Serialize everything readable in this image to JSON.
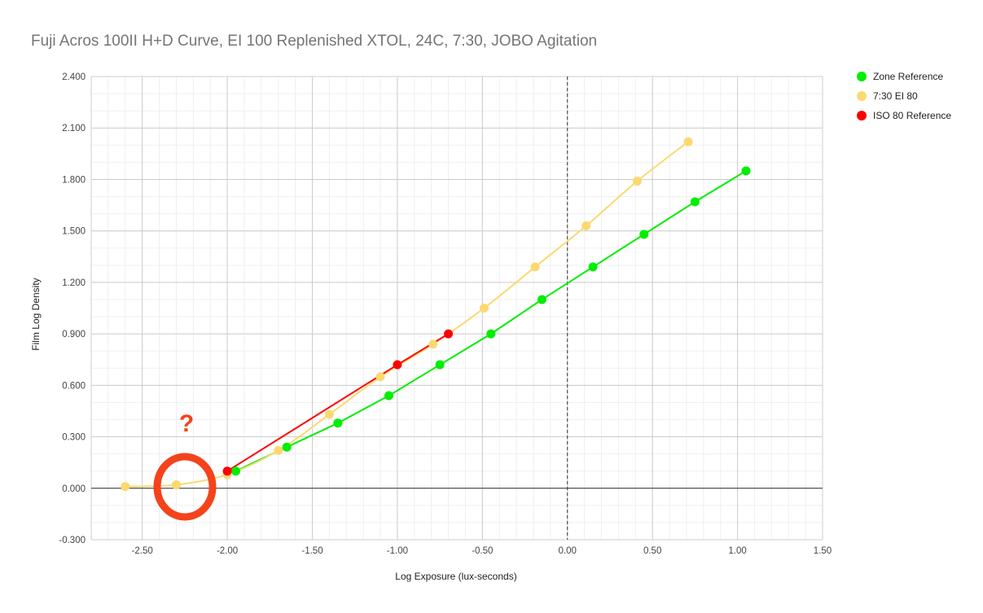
{
  "chart_data": {
    "type": "line",
    "title": "Fuji Acros 100II H+D Curve, EI 100 Replenished XTOL, 24C, 7:30, JOBO Agitation",
    "xlabel": "Log Exposure (lux-seconds)",
    "ylabel": "Film Log Density",
    "xlim": [
      -2.8,
      1.5
    ],
    "ylim": [
      -0.3,
      2.4
    ],
    "x_ticks": [
      "-2.50",
      "-2.00",
      "-1.50",
      "-1.00",
      "-0.50",
      "0.00",
      "0.50",
      "1.00",
      "1.50"
    ],
    "y_ticks": [
      "-0.300",
      "0.000",
      "0.300",
      "0.600",
      "0.900",
      "1.200",
      "1.500",
      "1.800",
      "2.100",
      "2.400"
    ],
    "grid": true,
    "legend_position": "top-right",
    "series": [
      {
        "name": "Zone Reference",
        "color": "#00ee00",
        "smooth": false,
        "points": [
          [
            -1.95,
            0.1
          ],
          [
            -1.65,
            0.24
          ],
          [
            -1.35,
            0.38
          ],
          [
            -1.05,
            0.54
          ],
          [
            -0.75,
            0.72
          ],
          [
            -0.45,
            0.9
          ],
          [
            -0.15,
            1.1
          ],
          [
            0.15,
            1.29
          ],
          [
            0.45,
            1.48
          ],
          [
            0.75,
            1.67
          ],
          [
            1.05,
            1.85
          ]
        ]
      },
      {
        "name": "7:30 EI 80",
        "color": "#fbd970",
        "smooth": true,
        "points": [
          [
            -2.6,
            0.01
          ],
          [
            -2.3,
            0.02
          ],
          [
            -2.0,
            0.08
          ],
          [
            -1.7,
            0.22
          ],
          [
            -1.4,
            0.43
          ],
          [
            -1.1,
            0.65
          ],
          [
            -0.79,
            0.84
          ],
          [
            -0.49,
            1.05
          ],
          [
            -0.19,
            1.29
          ],
          [
            0.11,
            1.53
          ],
          [
            0.41,
            1.79
          ],
          [
            0.71,
            2.02
          ]
        ]
      },
      {
        "name": "ISO 80 Reference",
        "color": "#ff0000",
        "smooth": false,
        "points": [
          [
            -2.0,
            0.1
          ],
          [
            -1.0,
            0.72
          ],
          [
            -0.7,
            0.9
          ]
        ]
      }
    ],
    "annotations": [
      {
        "text": "?",
        "color": "#f4431b"
      },
      {
        "shape": "circle",
        "color": "#f4431b"
      }
    ]
  }
}
